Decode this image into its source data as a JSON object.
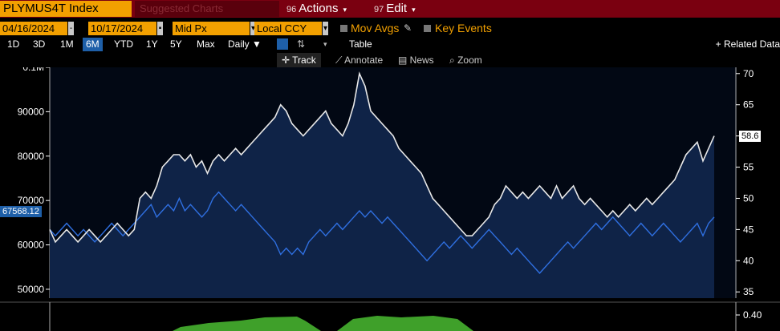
{
  "header": {
    "ticker": "PLYMUS4T Index",
    "suggested": "Suggested Charts",
    "actions": {
      "num": "96",
      "label": "Actions"
    },
    "edit": {
      "num": "97",
      "label": "Edit"
    }
  },
  "controls": {
    "start_date": "04/16/2024",
    "end_date": "10/17/2024",
    "price_field": "Mid Px",
    "currency": "Local CCY",
    "mov_avgs": "Mov Avgs",
    "key_events": "Key Events"
  },
  "periods": [
    "1D",
    "3D",
    "1M",
    "6M",
    "YTD",
    "1Y",
    "5Y",
    "Max"
  ],
  "active_period": "6M",
  "frequency": "Daily",
  "table_label": "Table",
  "related": "+ Related Data",
  "tools": [
    "Track",
    "Annotate",
    "News",
    "Zoom"
  ],
  "active_tool": "Track",
  "colors": {
    "title_bar": "#7a0010",
    "accent": "#f2a000",
    "white_line": "#e8e8e8",
    "blue_line": "#2f6fe0",
    "fill": "#0f2347",
    "sub_fill": "#3fa02a"
  },
  "chart_data": {
    "type": "line",
    "left_axis": {
      "ticks": [
        "0.1M",
        "90000",
        "80000",
        "70000",
        "60000",
        "50000"
      ],
      "range": [
        48000,
        100000
      ]
    },
    "right_axis": {
      "ticks": [
        "70",
        "65",
        "60",
        "55",
        "50",
        "45",
        "40",
        "35"
      ],
      "range": [
        34,
        71
      ]
    },
    "last_left_value": "67568.12",
    "last_right_value": "58.6",
    "series": [
      {
        "axis": "right",
        "values": [
          45,
          43,
          44,
          45,
          44,
          43,
          44,
          45,
          44,
          43,
          44,
          45,
          46,
          45,
          44,
          45,
          50,
          51,
          50,
          52,
          55,
          56,
          57,
          57,
          56,
          57,
          55,
          56,
          54,
          56,
          57,
          56,
          57,
          58,
          57,
          58,
          59,
          60,
          61,
          62,
          63,
          65,
          64,
          62,
          61,
          60,
          61,
          62,
          63,
          64,
          62,
          61,
          60,
          62,
          65,
          70,
          68,
          64,
          63,
          62,
          61,
          60,
          58,
          57,
          56,
          55,
          54,
          52,
          50,
          49,
          48,
          47,
          46,
          45,
          44,
          44,
          45,
          46,
          47,
          49,
          50,
          52,
          51,
          50,
          51,
          50,
          51,
          52,
          51,
          50,
          52,
          50,
          51,
          52,
          50,
          49,
          50,
          49,
          48,
          47,
          48,
          47,
          48,
          49,
          48,
          49,
          50,
          49,
          50,
          51,
          52,
          53,
          55,
          57,
          58,
          59,
          56,
          58,
          60
        ]
      },
      {
        "axis": "right",
        "values": [
          45,
          44,
          45,
          46,
          45,
          44,
          45,
          44,
          43,
          44,
          45,
          46,
          45,
          44,
          45,
          46,
          47,
          48,
          49,
          47,
          48,
          49,
          48,
          50,
          48,
          49,
          48,
          47,
          48,
          50,
          51,
          50,
          49,
          48,
          49,
          48,
          47,
          46,
          45,
          44,
          43,
          41,
          42,
          41,
          42,
          41,
          43,
          44,
          45,
          44,
          45,
          46,
          45,
          46,
          47,
          48,
          47,
          48,
          47,
          46,
          47,
          46,
          45,
          44,
          43,
          42,
          41,
          40,
          41,
          42,
          43,
          42,
          43,
          44,
          43,
          42,
          43,
          44,
          45,
          44,
          43,
          42,
          41,
          42,
          41,
          40,
          39,
          38,
          39,
          40,
          41,
          42,
          43,
          42,
          43,
          44,
          45,
          46,
          45,
          46,
          47,
          46,
          45,
          44,
          45,
          46,
          45,
          44,
          45,
          46,
          45,
          44,
          43,
          44,
          45,
          46,
          44,
          46,
          47
        ]
      }
    ],
    "sub_series": {
      "axis_ticks": [
        "0.40"
      ]
    }
  }
}
